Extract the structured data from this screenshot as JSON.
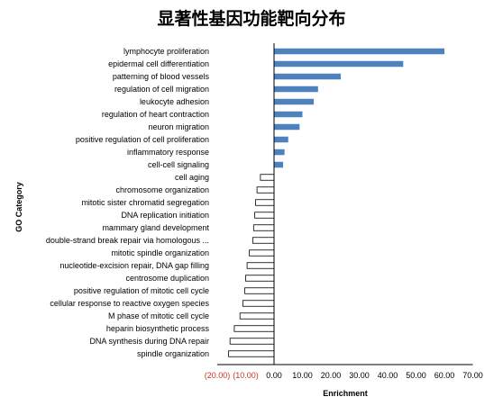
{
  "chart_data": {
    "type": "bar",
    "orientation": "horizontal",
    "title": "显著性基因功能靶向分布",
    "xlabel": "Enrichment",
    "ylabel": "GO Category",
    "xlim": [
      -20,
      70
    ],
    "x_ticks": [
      "(20.00)",
      "(10.00)",
      "0.00",
      "10.00",
      "20.00",
      "30.00",
      "40.00",
      "50.00",
      "60.00",
      "70.00"
    ],
    "x_tick_values": [
      -20,
      -10,
      0,
      10,
      20,
      30,
      40,
      50,
      60,
      70
    ],
    "negative_tick_color": "#c0392b",
    "up_color": "#4f81bd",
    "down_color": "#ffffff",
    "down_border_color": "#000000",
    "grid": false,
    "categories": [
      "lymphocyte proliferation",
      "epidermal cell differentiation",
      "patterning of blood vessels",
      "regulation of cell migration",
      "leukocyte adhesion",
      "regulation of heart contraction",
      "neuron migration",
      "positive regulation of cell proliferation",
      "inflammatory response",
      "cell-cell signaling",
      "cell aging",
      "chromosome organization",
      "mitotic sister chromatid segregation",
      "DNA replication initiation",
      "mammary gland development",
      "double-strand break repair via homologous ...",
      "mitotic spindle organization",
      "nucleotide-excision repair, DNA gap filling",
      "centrosome duplication",
      "positive regulation of mitotic cell cycle",
      "cellular response to reactive oxygen species",
      "M phase of mitotic cell cycle",
      "heparin biosynthetic process",
      "DNA synthesis during DNA repair",
      "spindle organization"
    ],
    "values": [
      60,
      45.5,
      23.5,
      15.5,
      14,
      10,
      9,
      5,
      3.7,
      3.2,
      -4.8,
      -6,
      -6.5,
      -6.8,
      -7.2,
      -7.5,
      -8.7,
      -9.5,
      -10,
      -10.3,
      -11,
      -12,
      -14,
      -15.5,
      -16
    ]
  }
}
